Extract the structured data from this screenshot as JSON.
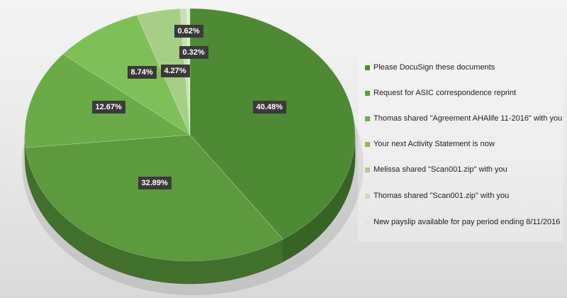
{
  "chart_data": {
    "type": "pie",
    "title": "",
    "slices": [
      {
        "label": "Please DocuSign these documents",
        "value": 40.48,
        "display": "40.48%",
        "color": "#4d8a33"
      },
      {
        "label": "Request for ASIC correspondence reprint",
        "value": 32.89,
        "display": "32.89%",
        "color": "#5c9a3d"
      },
      {
        "label": "Thomas shared \"Agreement AHAlife 11-2016\" with you",
        "value": 12.67,
        "display": "12.67%",
        "color": "#6aab47"
      },
      {
        "label": "Your next Activity Statement is now",
        "value": 8.74,
        "display": "8.74%",
        "color": "#7fbf57"
      },
      {
        "label": "Melissa shared \"Scan001.zip\" with you",
        "value": 4.27,
        "display": "4.27%",
        "color": "#a5cf86"
      },
      {
        "label": "Thomas shared \"Scan001.zip\" with you",
        "value": 0.62,
        "display": "0.62%",
        "color": "#c5e0b1"
      },
      {
        "label": "New payslip available for pay period ending 8/11/2016",
        "value": 0.32,
        "display": "0.32%",
        "color": "#dcecd0"
      }
    ],
    "legend_position": "right",
    "style": "3d-pie"
  }
}
